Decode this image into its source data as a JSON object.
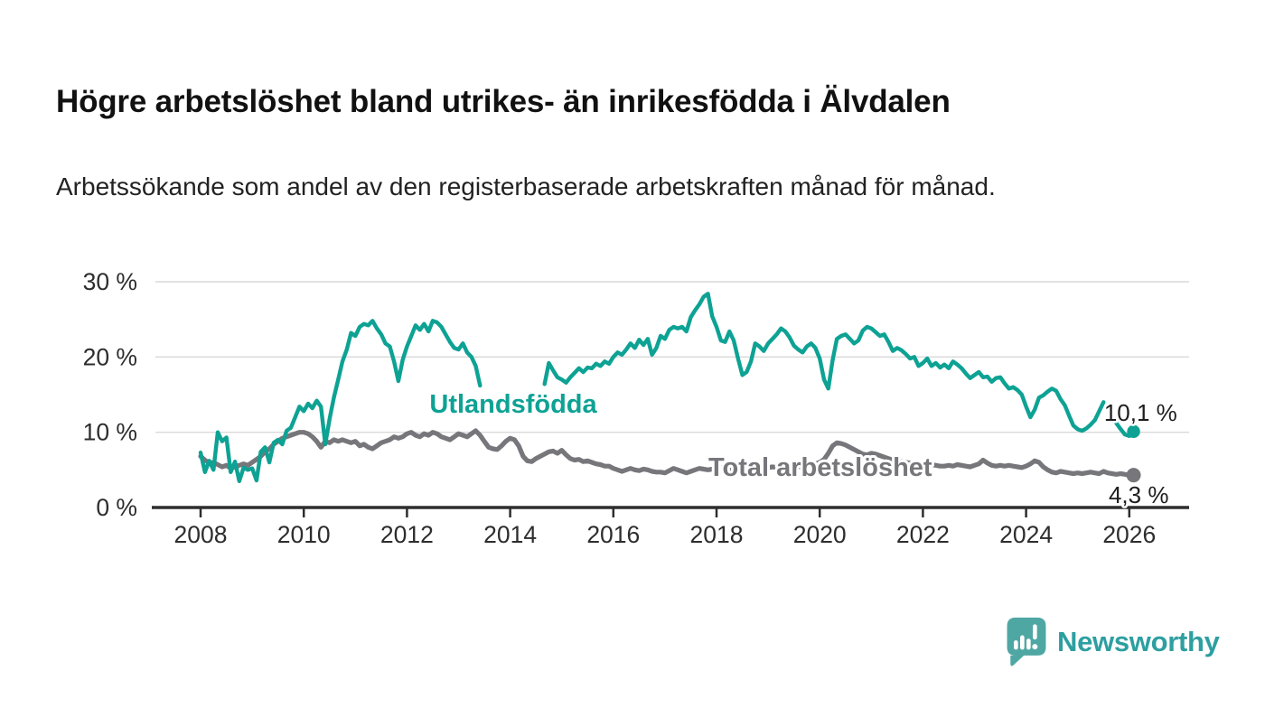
{
  "header": {
    "title": "Högre arbetslöshet bland utrikes- än inrikesfödda i Älvdalen",
    "subtitle": "Arbetssökande som andel av den registerbaserade arbetskraften månad för månad."
  },
  "footer": {
    "brand": "Newsworthy",
    "logo_icon": "bar-chart-speech-bubble-icon"
  },
  "colors": {
    "background": "#ffffff",
    "axis": "#2e2e2e",
    "grid": "#d9d9d9",
    "tick_text": "#2d2d2d",
    "accent_teal": "#0DA294",
    "series_gray": "#76767B",
    "logo_icon": "#4FA7A4",
    "logo_text": "#2E9FA0",
    "value_label_text": "#1d1d1f"
  },
  "chart_data": {
    "type": "line",
    "title": "Högre arbetslöshet bland utrikes- än inrikesfödda i Älvdalen",
    "subtitle": "Arbetssökande som andel av den registerbaserade arbetskraften månad för månad.",
    "xlabel": "",
    "ylabel": "",
    "grid": "horizontal",
    "legend_position": "inline-labels",
    "x_start_year": 2008,
    "points_per_year": 12,
    "xlim": [
      2007.05,
      2027.2
    ],
    "ylim": [
      0,
      30
    ],
    "x_ticks": [
      2008,
      2010,
      2012,
      2014,
      2016,
      2018,
      2020,
      2022,
      2024,
      2026
    ],
    "y_ticks": [
      {
        "value": 0,
        "label": "0 %"
      },
      {
        "value": 10,
        "label": "10 %"
      },
      {
        "value": 20,
        "label": "20 %"
      },
      {
        "value": 30,
        "label": "30 %"
      }
    ],
    "series": [
      {
        "name": "Total arbetslöshet",
        "color": "#76767B",
        "line_width": 5.2,
        "dot_radius": 8,
        "label": {
          "text": "Total arbetslöshet",
          "x": 2020.01,
          "y": 4.2,
          "anchor": "middle"
        },
        "end_label": {
          "text": "4,3 %",
          "x": 2025.6,
          "y": 0.6,
          "anchor": "start"
        },
        "last_value": 4.3,
        "values": [
          6.8,
          6.3,
          5.9,
          6.0,
          5.7,
          5.4,
          5.6,
          5.2,
          5.4,
          5.6,
          5.8,
          5.6,
          6.0,
          6.4,
          6.8,
          7.4,
          7.8,
          8.4,
          8.8,
          9.2,
          9.4,
          9.6,
          9.8,
          10.0,
          10.0,
          9.8,
          9.4,
          8.8,
          8.0,
          8.8,
          8.6,
          9.0,
          8.8,
          9.0,
          8.8,
          8.6,
          8.8,
          8.2,
          8.4,
          8.0,
          7.8,
          8.2,
          8.6,
          8.8,
          9.0,
          9.4,
          9.2,
          9.4,
          9.8,
          10.0,
          9.6,
          9.4,
          9.8,
          9.6,
          10.0,
          9.8,
          9.4,
          9.2,
          9.0,
          9.4,
          9.8,
          9.6,
          9.4,
          9.8,
          10.2,
          9.6,
          8.8,
          8.0,
          7.8,
          7.7,
          8.2,
          8.8,
          9.2,
          9.0,
          8.2,
          6.8,
          6.2,
          6.1,
          6.5,
          6.8,
          7.1,
          7.4,
          7.5,
          7.2,
          7.6,
          7.0,
          6.5,
          6.3,
          6.4,
          6.1,
          6.2,
          6.0,
          5.8,
          5.7,
          5.5,
          5.5,
          5.2,
          5.0,
          4.8,
          5.0,
          5.2,
          5.0,
          4.9,
          5.1,
          5.0,
          4.8,
          4.7,
          4.7,
          4.6,
          4.9,
          5.2,
          5.0,
          4.8,
          4.6,
          4.8,
          5.0,
          5.2,
          5.1,
          5.0,
          5.1,
          5.2,
          5.3,
          5.2,
          5.0,
          4.9,
          4.8,
          4.9,
          5.0,
          5.1,
          5.0,
          5.1,
          5.2,
          5.3,
          5.4,
          5.3,
          5.2,
          5.3,
          5.4,
          5.5,
          5.4,
          5.5,
          5.6,
          5.7,
          5.8,
          6.0,
          6.4,
          7.2,
          8.2,
          8.6,
          8.5,
          8.3,
          8.0,
          7.7,
          7.4,
          7.1,
          7.0,
          7.2,
          7.1,
          6.9,
          6.7,
          6.5,
          6.3,
          6.2,
          6.1,
          6.0,
          5.9,
          5.8,
          5.8,
          5.9,
          5.8,
          5.7,
          5.6,
          5.5,
          5.5,
          5.6,
          5.5,
          5.7,
          5.6,
          5.5,
          5.4,
          5.6,
          5.8,
          6.3,
          5.9,
          5.6,
          5.5,
          5.6,
          5.5,
          5.6,
          5.5,
          5.4,
          5.3,
          5.5,
          5.8,
          6.2,
          6.0,
          5.4,
          5.0,
          4.7,
          4.6,
          4.8,
          4.7,
          4.6,
          4.5,
          4.6,
          4.5,
          4.6,
          4.7,
          4.6,
          4.5,
          4.8,
          4.6,
          4.5,
          4.4,
          4.5,
          4.4,
          4.3,
          4.3
        ]
      },
      {
        "name": "Utlandsfödda",
        "color": "#0DA294",
        "line_width": 4.4,
        "dot_radius": 7.2,
        "label": {
          "text": "Utlandsfödda",
          "x": 2014.06,
          "y": 12.6,
          "anchor": "middle"
        },
        "end_label": {
          "text": "10,1 %",
          "x": 2025.51,
          "y": 11.5,
          "anchor": "start"
        },
        "last_value": 10.1,
        "values": [
          7.3,
          4.7,
          6.2,
          5.0,
          10.0,
          8.8,
          9.3,
          4.7,
          6.1,
          3.5,
          5.3,
          5.0,
          5.2,
          3.6,
          7.4,
          8.0,
          6.0,
          8.6,
          9.0,
          8.4,
          10.2,
          10.6,
          12.0,
          13.4,
          12.8,
          13.8,
          13.2,
          14.2,
          13.4,
          8.4,
          11.8,
          14.6,
          17.0,
          19.4,
          21.0,
          23.2,
          22.8,
          24.0,
          24.4,
          24.2,
          24.8,
          23.8,
          23.0,
          21.8,
          21.4,
          19.4,
          16.8,
          19.6,
          21.4,
          22.8,
          24.2,
          23.6,
          24.4,
          23.4,
          24.8,
          24.6,
          24.0,
          23.0,
          22.0,
          21.2,
          21.0,
          21.8,
          20.6,
          20.0,
          18.8,
          16.2,
          null,
          null,
          null,
          null,
          null,
          null,
          null,
          null,
          null,
          null,
          null,
          null,
          null,
          null,
          16.4,
          19.2,
          18.2,
          17.3,
          17.0,
          16.6,
          17.3,
          17.9,
          18.5,
          18.0,
          18.6,
          18.5,
          19.1,
          18.8,
          19.4,
          19.1,
          20.0,
          20.6,
          20.3,
          21.0,
          21.8,
          21.2,
          22.3,
          21.6,
          22.4,
          20.3,
          21.2,
          22.8,
          22.4,
          23.6,
          24.0,
          23.8,
          24.0,
          23.4,
          25.3,
          26.2,
          27.0,
          28.0,
          28.4,
          25.4,
          24.0,
          22.2,
          22.0,
          23.4,
          22.2,
          19.8,
          17.6,
          18.0,
          19.4,
          21.8,
          21.4,
          20.8,
          21.8,
          22.4,
          23.0,
          23.8,
          23.4,
          22.6,
          21.5,
          21.0,
          20.6,
          21.4,
          21.8,
          21.2,
          19.8,
          17.0,
          15.8,
          19.6,
          22.4,
          22.8,
          23.0,
          22.4,
          21.8,
          22.2,
          23.5,
          24.0,
          23.8,
          23.3,
          22.8,
          23.0,
          22.0,
          20.8,
          21.2,
          20.9,
          20.4,
          19.8,
          20.0,
          18.8,
          19.2,
          19.8,
          18.8,
          19.2,
          18.6,
          19.0,
          18.5,
          19.4,
          19.0,
          18.5,
          17.8,
          17.2,
          17.6,
          18.0,
          17.3,
          17.4,
          16.7,
          17.2,
          17.3,
          16.5,
          15.8,
          16.0,
          15.6,
          15.0,
          13.4,
          12.0,
          13.0,
          14.6,
          14.9,
          15.4,
          15.8,
          15.5,
          14.4,
          13.6,
          12.2,
          10.9,
          10.4,
          10.2,
          10.5,
          11.0,
          11.6,
          12.8,
          14.0,
          null,
          null,
          11.2,
          10.4,
          9.7,
          9.5,
          10.1
        ]
      }
    ]
  }
}
